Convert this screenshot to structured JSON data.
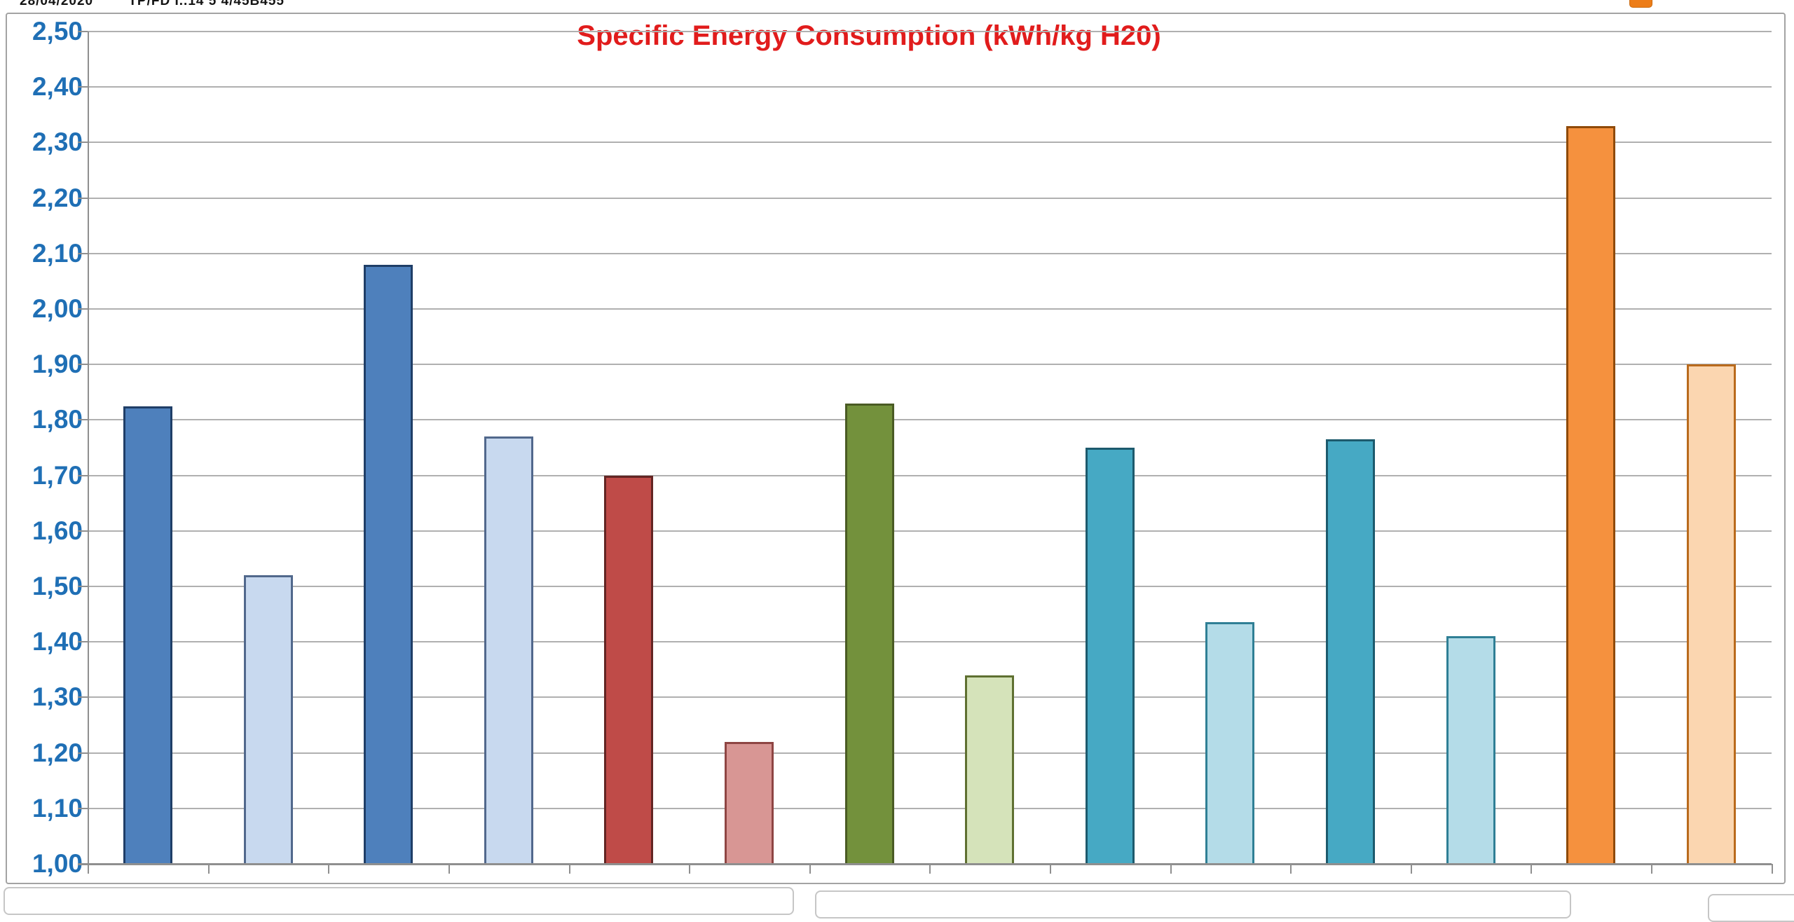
{
  "page": {
    "background": "#ffffff"
  },
  "header": {
    "clipped_text": "28/04/2020        TP/FD I..14 5 4/45B455",
    "pill_color": "#ed7d18"
  },
  "chart_data": {
    "type": "bar",
    "title": "Specific Energy Consumption (kWh/kg H20)",
    "title_color": "#e11c1c",
    "ylim": [
      1.0,
      2.5
    ],
    "y_step": 0.1,
    "decimal_separator": ",",
    "grid": true,
    "legend": "none",
    "x_axis_labels_visible": false,
    "y_axis": {
      "tick_labels": [
        "2,50",
        "2,40",
        "2,30",
        "2,20",
        "2,10",
        "2,00",
        "1,90",
        "1,80",
        "1,70",
        "1,60",
        "1,50",
        "1,40",
        "1,30",
        "1,20",
        "1,10",
        "1,00"
      ],
      "label_color": "#1f6fb5"
    },
    "colors": {
      "gridline": "#b0b0b0",
      "axis": "#8f8f8f",
      "plot_background": "#ffffff"
    },
    "series": [
      {
        "name": "bar-1",
        "value": 1.825,
        "fill": "#4e80bc",
        "border": "#1f3e67"
      },
      {
        "name": "bar-2",
        "value": 1.52,
        "fill": "#c8d9ef",
        "border": "#51688c"
      },
      {
        "name": "bar-3",
        "value": 2.08,
        "fill": "#4e80bc",
        "border": "#1f3e67"
      },
      {
        "name": "bar-4",
        "value": 1.77,
        "fill": "#c8d9ef",
        "border": "#51688c"
      },
      {
        "name": "bar-5",
        "value": 1.7,
        "fill": "#bf4b48",
        "border": "#632523"
      },
      {
        "name": "bar-6",
        "value": 1.22,
        "fill": "#d89694",
        "border": "#8e4543"
      },
      {
        "name": "bar-7",
        "value": 1.83,
        "fill": "#73913c",
        "border": "#4a5b24"
      },
      {
        "name": "bar-8",
        "value": 1.34,
        "fill": "#d5e3ba",
        "border": "#5f7031"
      },
      {
        "name": "bar-9",
        "value": 1.75,
        "fill": "#46a9c4",
        "border": "#1d5a6d"
      },
      {
        "name": "bar-10",
        "value": 1.435,
        "fill": "#b4dce8",
        "border": "#2f7f95"
      },
      {
        "name": "bar-11",
        "value": 1.765,
        "fill": "#46a9c4",
        "border": "#1d5a6d"
      },
      {
        "name": "bar-12",
        "value": 1.41,
        "fill": "#b4dce8",
        "border": "#2f7f95"
      },
      {
        "name": "bar-13",
        "value": 2.33,
        "fill": "#f5913e",
        "border": "#8f4a08"
      },
      {
        "name": "bar-14",
        "value": 1.9,
        "fill": "#fbd6b0",
        "border": "#b96a1c"
      }
    ]
  },
  "bottom_objects": {
    "note": "partially visible object borders clipped at screenshot bottom edge",
    "count": 3
  }
}
